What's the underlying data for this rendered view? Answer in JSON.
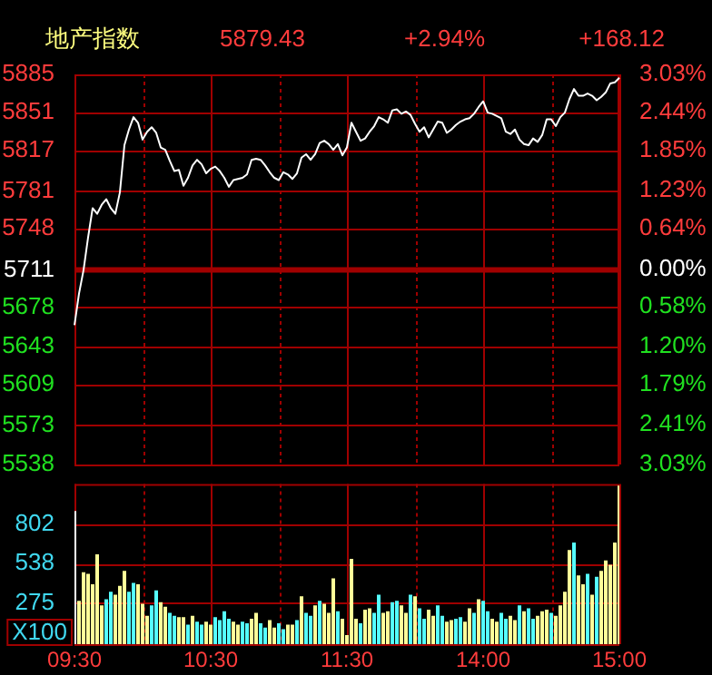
{
  "chart_data": [
    {
      "type": "line",
      "title": "地产指数",
      "annotations": [
        "5879.43",
        "+2.94%",
        "+168.12"
      ],
      "categories": [
        null,
        null,
        null,
        null,
        null,
        null,
        null,
        null,
        null,
        null,
        null,
        null,
        null,
        null,
        null,
        null,
        null,
        null,
        null,
        null,
        null,
        null,
        null,
        null,
        null,
        null,
        null,
        null,
        null,
        null,
        null,
        null,
        null,
        null,
        null,
        null,
        null,
        null,
        null,
        null,
        null,
        null,
        null,
        null,
        null,
        null,
        null,
        null,
        null,
        null,
        null,
        null,
        null,
        null,
        null,
        null,
        null,
        null,
        null,
        null,
        null,
        null,
        null,
        null,
        null,
        null,
        null,
        null,
        null,
        null,
        null,
        null,
        null,
        null,
        null,
        null,
        null,
        null,
        null,
        null,
        null,
        null,
        null,
        null,
        null,
        null,
        null,
        null,
        null,
        null,
        null,
        null,
        null,
        null,
        null,
        null,
        null,
        null,
        null,
        null,
        null,
        null,
        null,
        null,
        null,
        null,
        null,
        null,
        null,
        null,
        null,
        null,
        null,
        null,
        null,
        null,
        null,
        null,
        null,
        null,
        null
      ],
      "series": [
        {
          "color": "#ffffff",
          "values": [
            5662,
            5690,
            5711,
            5740,
            5766,
            5761,
            5769,
            5774,
            5766,
            5761,
            5780,
            5822,
            5836,
            5847,
            5842,
            5827,
            5834,
            5838,
            5833,
            5820,
            5818,
            5808,
            5799,
            5800,
            5786,
            5793,
            5804,
            5809,
            5805,
            5797,
            5801,
            5803,
            5799,
            5793,
            5785,
            5791,
            5792,
            5793,
            5796,
            5809,
            5810,
            5809,
            5804,
            5798,
            5793,
            5791,
            5798,
            5796,
            5792,
            5797,
            5811,
            5814,
            5809,
            5814,
            5824,
            5826,
            5823,
            5818,
            5823,
            5813,
            5820,
            5842,
            5834,
            5826,
            5828,
            5834,
            5839,
            5847,
            5845,
            5842,
            5853,
            5854,
            5850,
            5852,
            5849,
            5841,
            5834,
            5838,
            5829,
            5836,
            5843,
            5842,
            5833,
            5836,
            5840,
            5843,
            5845,
            5846,
            5850,
            5856,
            5861,
            5851,
            5850,
            5848,
            5846,
            5834,
            5832,
            5836,
            5827,
            5823,
            5822,
            5828,
            5825,
            5831,
            5845,
            5845,
            5839,
            5847,
            5851,
            5863,
            5872,
            5866,
            5866,
            5868,
            5866,
            5862,
            5865,
            5869,
            5877,
            5878,
            5882
          ]
        }
      ],
      "ylim": [
        5538,
        5885
      ],
      "yticks": [
        5538,
        5573,
        5609,
        5643,
        5678,
        5711,
        5748,
        5781,
        5817,
        5851,
        5885
      ],
      "y2lim": [
        -3.03,
        3.03
      ],
      "y2ticks": [
        {
          "value": -3.03,
          "label": "3.03%"
        },
        {
          "value": -2.41,
          "label": "2.41%"
        },
        {
          "value": -1.79,
          "label": "1.79%"
        },
        {
          "value": -1.2,
          "label": "1.20%"
        },
        {
          "value": -0.58,
          "label": "0.58%"
        },
        {
          "value": 0,
          "label": "0.00%"
        },
        {
          "value": 0.64,
          "label": "0.64%"
        },
        {
          "value": 1.23,
          "label": "1.23%"
        },
        {
          "value": 1.85,
          "label": "1.85%"
        },
        {
          "value": 2.44,
          "label": "2.44%"
        },
        {
          "value": 3.03,
          "label": "3.03%"
        }
      ],
      "ref_lines": [
        {
          "axis": "y",
          "value": 5711,
          "color": "#a00000"
        }
      ],
      "grid": true,
      "legend": false,
      "marker": "none",
      "line_style": "solid",
      "tick_labels": "y"
    },
    {
      "type": "bar",
      "ylabel": "X100",
      "categories": [
        "09:30",
        null,
        null,
        null,
        null,
        null,
        null,
        null,
        null,
        null,
        null,
        null,
        null,
        null,
        null,
        null,
        null,
        null,
        null,
        null,
        null,
        null,
        null,
        null,
        null,
        null,
        null,
        null,
        null,
        null,
        "10:30",
        null,
        null,
        null,
        null,
        null,
        null,
        null,
        null,
        null,
        null,
        null,
        null,
        null,
        null,
        null,
        null,
        null,
        null,
        null,
        null,
        null,
        null,
        null,
        null,
        null,
        null,
        null,
        null,
        null,
        "11:30",
        null,
        null,
        null,
        null,
        null,
        null,
        null,
        null,
        null,
        null,
        null,
        null,
        null,
        null,
        null,
        null,
        null,
        null,
        null,
        null,
        null,
        null,
        null,
        null,
        null,
        null,
        null,
        null,
        null,
        "14:00",
        null,
        null,
        null,
        null,
        null,
        null,
        null,
        null,
        null,
        null,
        null,
        null,
        null,
        null,
        null,
        null,
        null,
        null,
        null,
        null,
        null,
        null,
        null,
        null,
        null,
        null,
        null,
        null,
        null,
        "15:00"
      ],
      "values": [
        890,
        290,
        480,
        470,
        400,
        600,
        260,
        300,
        350,
        330,
        390,
        490,
        350,
        410,
        400,
        270,
        190,
        260,
        360,
        280,
        250,
        210,
        190,
        180,
        180,
        130,
        190,
        150,
        130,
        150,
        130,
        180,
        160,
        220,
        170,
        150,
        130,
        150,
        140,
        170,
        210,
        140,
        110,
        160,
        110,
        140,
        100,
        130,
        130,
        160,
        320,
        210,
        190,
        260,
        290,
        270,
        210,
        440,
        220,
        170,
        60,
        570,
        170,
        140,
        230,
        240,
        210,
        330,
        210,
        220,
        280,
        290,
        260,
        210,
        330,
        320,
        240,
        170,
        230,
        190,
        260,
        190,
        150,
        160,
        170,
        180,
        150,
        240,
        210,
        300,
        290,
        220,
        170,
        150,
        210,
        170,
        190,
        160,
        260,
        220,
        240,
        170,
        190,
        220,
        230,
        210,
        190,
        260,
        350,
        630,
        680,
        460,
        400,
        470,
        330,
        450,
        490,
        560,
        530,
        680,
        1060
      ],
      "colors": [
        "#ffffff",
        "#ffff99",
        "#ffff99",
        "#ffff99",
        "#ffff99",
        "#ffff99",
        "#ffff99",
        "#55ffff",
        "#55ffff",
        "#ffff99",
        "#ffff99",
        "#ffff99",
        "#55ffff",
        "#55ffff",
        "#ffff99",
        "#ffff99",
        "#ffff99",
        "#55ffff",
        "#55ffff",
        "#ffff99",
        "#ffff99",
        "#55ffff",
        "#55ffff",
        "#ffff99",
        "#ffff99",
        "#55ffff",
        "#ffff99",
        "#55ffff",
        "#55ffff",
        "#ffff99",
        "#ffff99",
        "#55ffff",
        "#55ffff",
        "#55ffff",
        "#55ffff",
        "#ffff99",
        "#ffff99",
        "#55ffff",
        "#55ffff",
        "#ffff99",
        "#ffff99",
        "#55ffff",
        "#55ffff",
        "#ffff99",
        "#ffff99",
        "#55ffff",
        "#55ffff",
        "#ffff99",
        "#ffff99",
        "#55ffff",
        "#ffff99",
        "#55ffff",
        "#55ffff",
        "#ffff99",
        "#55ffff",
        "#ffff99",
        "#ffff99",
        "#ffff99",
        "#55ffff",
        "#ffff99",
        "#ffff99",
        "#ffff99",
        "#ffff99",
        "#55ffff",
        "#ffff99",
        "#ffff99",
        "#55ffff",
        "#55ffff",
        "#ffff99",
        "#ffff99",
        "#55ffff",
        "#55ffff",
        "#ffff99",
        "#ffff99",
        "#55ffff",
        "#ffff99",
        "#55ffff",
        "#55ffff",
        "#ffff99",
        "#ffff99",
        "#55ffff",
        "#55ffff",
        "#ffff99",
        "#ffff99",
        "#55ffff",
        "#55ffff",
        "#ffff99",
        "#ffff99",
        "#55ffff",
        "#ffff99",
        "#55ffff",
        "#55ffff",
        "#ffff99",
        "#ffff99",
        "#55ffff",
        "#55ffff",
        "#ffff99",
        "#ffff99",
        "#55ffff",
        "#ffff99",
        "#55ffff",
        "#55ffff",
        "#ffff99",
        "#ffff99",
        "#ffff99",
        "#55ffff",
        "#ffff99",
        "#ffff99",
        "#ffff99",
        "#ffff99",
        "#55ffff",
        "#ffff99",
        "#ffff99",
        "#55ffff",
        "#ffff99",
        "#55ffff",
        "#ffff99",
        "#ffff99",
        "#ffff99",
        "#ffff99",
        "#ffff99"
      ],
      "ylim": [
        0,
        1070
      ],
      "yticks": [
        275,
        538,
        802
      ],
      "grid": true,
      "legend": false
    }
  ]
}
